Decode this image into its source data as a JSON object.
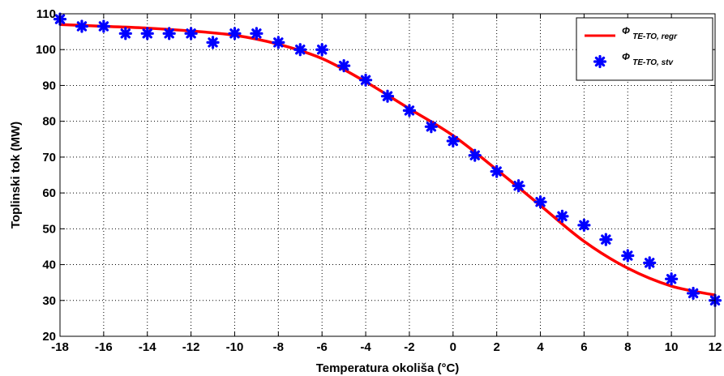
{
  "chart_data": {
    "type": "line",
    "xlabel": "Temperatura okoliša (°C)",
    "ylabel": "Toplinski tok (MW)",
    "xlim": [
      -18,
      12
    ],
    "ylim": [
      20,
      110
    ],
    "xticks": [
      -18,
      -16,
      -14,
      -12,
      -10,
      -8,
      -6,
      -4,
      -2,
      0,
      2,
      4,
      6,
      8,
      10,
      12
    ],
    "yticks": [
      20,
      30,
      40,
      50,
      60,
      70,
      80,
      90,
      100,
      110
    ],
    "grid": true,
    "legend_position": "top-right",
    "series": [
      {
        "name": "Φ TE-TO, regr",
        "legend_main": "Φ",
        "legend_sub": "TE-TO, regr",
        "style": "line",
        "color": "#ff0000",
        "x": [
          -18,
          -16,
          -14,
          -12,
          -10,
          -8,
          -6,
          -4,
          -2,
          0,
          2,
          4,
          6,
          8,
          10,
          12
        ],
        "y": [
          107,
          106.5,
          106,
          105.2,
          104,
          101.5,
          97.5,
          91,
          83.5,
          76,
          66.5,
          56.5,
          46.5,
          39,
          34,
          31.5
        ]
      },
      {
        "name": "Φ TE-TO, stv",
        "legend_main": "Φ",
        "legend_sub": "TE-TO, stv",
        "style": "marker",
        "color": "#0000ff",
        "x": [
          -18,
          -17,
          -16,
          -15,
          -14,
          -13,
          -12,
          -11,
          -10,
          -9,
          -8,
          -7,
          -6,
          -5,
          -4,
          -3,
          -2,
          -1,
          0,
          1,
          2,
          3,
          4,
          5,
          6,
          7,
          8,
          9,
          10,
          11,
          12
        ],
        "y": [
          108.5,
          106.5,
          106.5,
          104.5,
          104.5,
          104.5,
          104.5,
          102,
          104.5,
          104.5,
          102,
          100,
          100,
          95.5,
          91.5,
          87,
          83,
          78.5,
          74.5,
          70.5,
          66,
          62,
          57.5,
          53.5,
          51,
          47,
          42.5,
          40.5,
          36,
          32,
          30
        ]
      }
    ]
  }
}
